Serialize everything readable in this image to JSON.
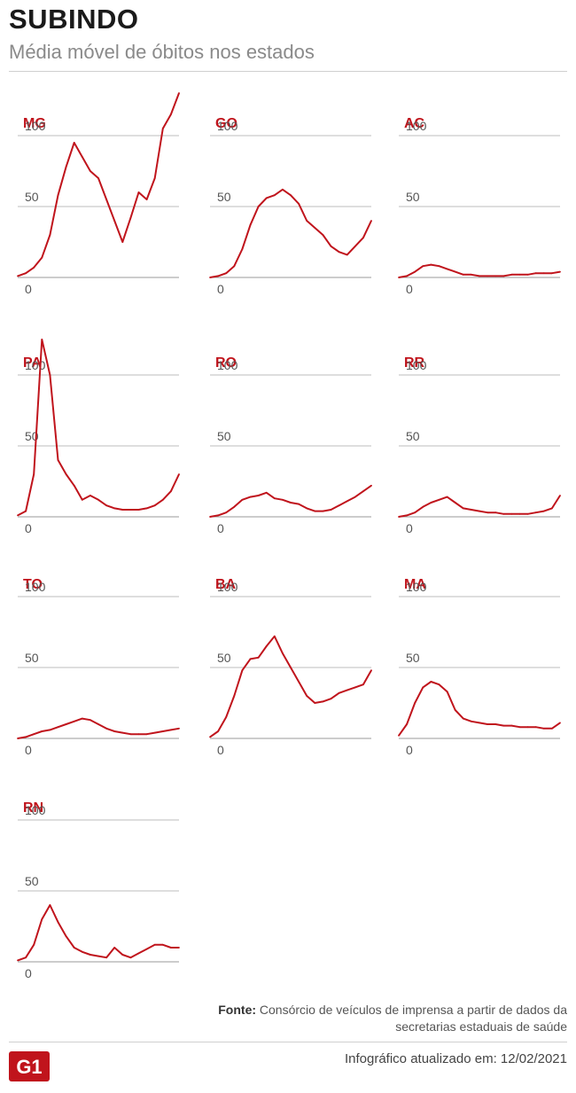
{
  "header": {
    "title": "SUBINDO",
    "subtitle": "Média móvel de óbitos nos estados"
  },
  "footer": {
    "source_label": "Fonte:",
    "source_text": "Consórcio de veículos de imprensa a partir de dados da secretarias estaduais de saúde",
    "logo_text": "G1",
    "updated": "Infográfico atualizado em: 12/02/2021"
  },
  "colors": {
    "series": "#c0141c",
    "label": "#c0141c",
    "grid": "#bdbdbd",
    "logo": "#c0141c"
  },
  "chart_data": [
    {
      "type": "line",
      "title": "MG",
      "ylim": [
        0,
        100
      ],
      "yticks": [
        0,
        50,
        100
      ],
      "grid": true,
      "x": [
        0,
        5,
        10,
        15,
        20,
        25,
        30,
        35,
        40,
        45,
        50,
        55,
        60,
        65,
        70,
        75,
        80,
        85,
        90,
        95,
        100
      ],
      "values": [
        1,
        3,
        7,
        14,
        30,
        58,
        78,
        95,
        85,
        75,
        70,
        55,
        40,
        25,
        42,
        60,
        55,
        70,
        105,
        115,
        130
      ]
    },
    {
      "type": "line",
      "title": "GO",
      "ylim": [
        0,
        100
      ],
      "yticks": [
        0,
        50,
        100
      ],
      "grid": true,
      "x": [
        0,
        5,
        10,
        15,
        20,
        25,
        30,
        35,
        40,
        45,
        50,
        55,
        60,
        65,
        70,
        75,
        80,
        85,
        90,
        95,
        100
      ],
      "values": [
        0,
        1,
        3,
        8,
        20,
        37,
        50,
        56,
        58,
        62,
        58,
        52,
        40,
        35,
        30,
        22,
        18,
        16,
        22,
        28,
        40
      ]
    },
    {
      "type": "line",
      "title": "AC",
      "ylim": [
        0,
        100
      ],
      "yticks": [
        0,
        50,
        100
      ],
      "grid": true,
      "x": [
        0,
        5,
        10,
        15,
        20,
        25,
        30,
        35,
        40,
        45,
        50,
        55,
        60,
        65,
        70,
        75,
        80,
        85,
        90,
        95,
        100
      ],
      "values": [
        0,
        1,
        4,
        8,
        9,
        8,
        6,
        4,
        2,
        2,
        1,
        1,
        1,
        1,
        2,
        2,
        2,
        3,
        3,
        3,
        4
      ]
    },
    {
      "type": "line",
      "title": "PA",
      "ylim": [
        0,
        100
      ],
      "yticks": [
        0,
        50,
        100
      ],
      "grid": true,
      "x": [
        0,
        5,
        10,
        15,
        20,
        25,
        30,
        35,
        40,
        45,
        50,
        55,
        60,
        65,
        70,
        75,
        80,
        85,
        90,
        95,
        100
      ],
      "values": [
        1,
        4,
        30,
        125,
        100,
        40,
        30,
        22,
        12,
        15,
        12,
        8,
        6,
        5,
        5,
        5,
        6,
        8,
        12,
        18,
        30
      ]
    },
    {
      "type": "line",
      "title": "RO",
      "ylim": [
        0,
        100
      ],
      "yticks": [
        0,
        50,
        100
      ],
      "grid": true,
      "x": [
        0,
        5,
        10,
        15,
        20,
        25,
        30,
        35,
        40,
        45,
        50,
        55,
        60,
        65,
        70,
        75,
        80,
        85,
        90,
        95,
        100
      ],
      "values": [
        0,
        1,
        3,
        7,
        12,
        14,
        15,
        17,
        13,
        12,
        10,
        9,
        6,
        4,
        4,
        5,
        8,
        11,
        14,
        18,
        22
      ]
    },
    {
      "type": "line",
      "title": "RR",
      "ylim": [
        0,
        100
      ],
      "yticks": [
        0,
        50,
        100
      ],
      "grid": true,
      "x": [
        0,
        5,
        10,
        15,
        20,
        25,
        30,
        35,
        40,
        45,
        50,
        55,
        60,
        65,
        70,
        75,
        80,
        85,
        90,
        95,
        100
      ],
      "values": [
        0,
        1,
        3,
        7,
        10,
        12,
        14,
        10,
        6,
        5,
        4,
        3,
        3,
        2,
        2,
        2,
        2,
        3,
        4,
        6,
        15
      ]
    },
    {
      "type": "line",
      "title": "TO",
      "ylim": [
        0,
        100
      ],
      "yticks": [
        0,
        50,
        100
      ],
      "grid": true,
      "x": [
        0,
        5,
        10,
        15,
        20,
        25,
        30,
        35,
        40,
        45,
        50,
        55,
        60,
        65,
        70,
        75,
        80,
        85,
        90,
        95,
        100
      ],
      "values": [
        0,
        1,
        3,
        5,
        6,
        8,
        10,
        12,
        14,
        13,
        10,
        7,
        5,
        4,
        3,
        3,
        3,
        4,
        5,
        6,
        7
      ]
    },
    {
      "type": "line",
      "title": "BA",
      "ylim": [
        0,
        100
      ],
      "yticks": [
        0,
        50,
        100
      ],
      "grid": true,
      "x": [
        0,
        5,
        10,
        15,
        20,
        25,
        30,
        35,
        40,
        45,
        50,
        55,
        60,
        65,
        70,
        75,
        80,
        85,
        90,
        95,
        100
      ],
      "values": [
        1,
        5,
        15,
        30,
        48,
        56,
        57,
        65,
        72,
        60,
        50,
        40,
        30,
        25,
        26,
        28,
        32,
        34,
        36,
        38,
        48
      ]
    },
    {
      "type": "line",
      "title": "MA",
      "ylim": [
        0,
        100
      ],
      "yticks": [
        0,
        50,
        100
      ],
      "grid": true,
      "x": [
        0,
        5,
        10,
        15,
        20,
        25,
        30,
        35,
        40,
        45,
        50,
        55,
        60,
        65,
        70,
        75,
        80,
        85,
        90,
        95,
        100
      ],
      "values": [
        2,
        10,
        25,
        36,
        40,
        38,
        33,
        20,
        14,
        12,
        11,
        10,
        10,
        9,
        9,
        8,
        8,
        8,
        7,
        7,
        11
      ]
    },
    {
      "type": "line",
      "title": "RN",
      "ylim": [
        0,
        100
      ],
      "yticks": [
        0,
        50,
        100
      ],
      "grid": true,
      "x": [
        0,
        5,
        10,
        15,
        20,
        25,
        30,
        35,
        40,
        45,
        50,
        55,
        60,
        65,
        70,
        75,
        80,
        85,
        90,
        95,
        100
      ],
      "values": [
        1,
        3,
        12,
        30,
        40,
        28,
        18,
        10,
        7,
        5,
        4,
        3,
        10,
        5,
        3,
        6,
        9,
        12,
        12,
        10,
        10
      ]
    }
  ]
}
